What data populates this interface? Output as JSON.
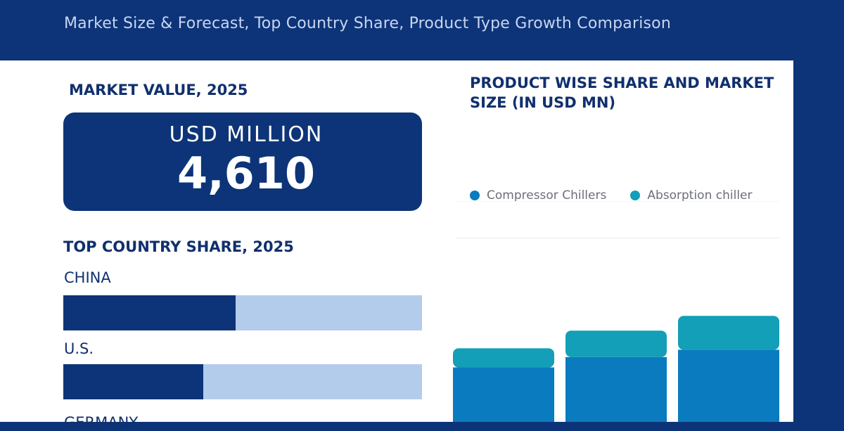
{
  "header": {
    "subtitle": "Market Size & Forecast, Top Country Share, Product Type Growth Comparison"
  },
  "market_value": {
    "title": "MARKET VALUE, 2025",
    "unit": "USD MILLION",
    "value": "4,610"
  },
  "country_share": {
    "title": "TOP COUNTRY SHARE, 2025",
    "countries": [
      {
        "label": "CHINA",
        "share": 0.48
      },
      {
        "label": "U.S.",
        "share": 0.39
      },
      {
        "label": "GERMANY"
      }
    ]
  },
  "colors": {
    "navy": "#0d3478",
    "light_blue": "#b4ccec",
    "compressor": "#0b7bbf",
    "absorption": "#129fb7"
  },
  "chart_data": {
    "type": "bar",
    "title": "PRODUCT WISE SHARE AND MARKET SIZE (IN USD MN)",
    "stacked": true,
    "legend": "top",
    "grid": true,
    "categories": [
      "",
      "",
      ""
    ],
    "series": [
      {
        "name": "Compressor Chillers",
        "color": "#0b7bbf",
        "values": [
          74,
          88,
          98
        ]
      },
      {
        "name": "Absorption chiller",
        "color": "#129fb7",
        "values": [
          26,
          36,
          46
        ]
      }
    ],
    "ylim": [
      0,
      300
    ],
    "gridlines": [
      300,
      250
    ]
  }
}
